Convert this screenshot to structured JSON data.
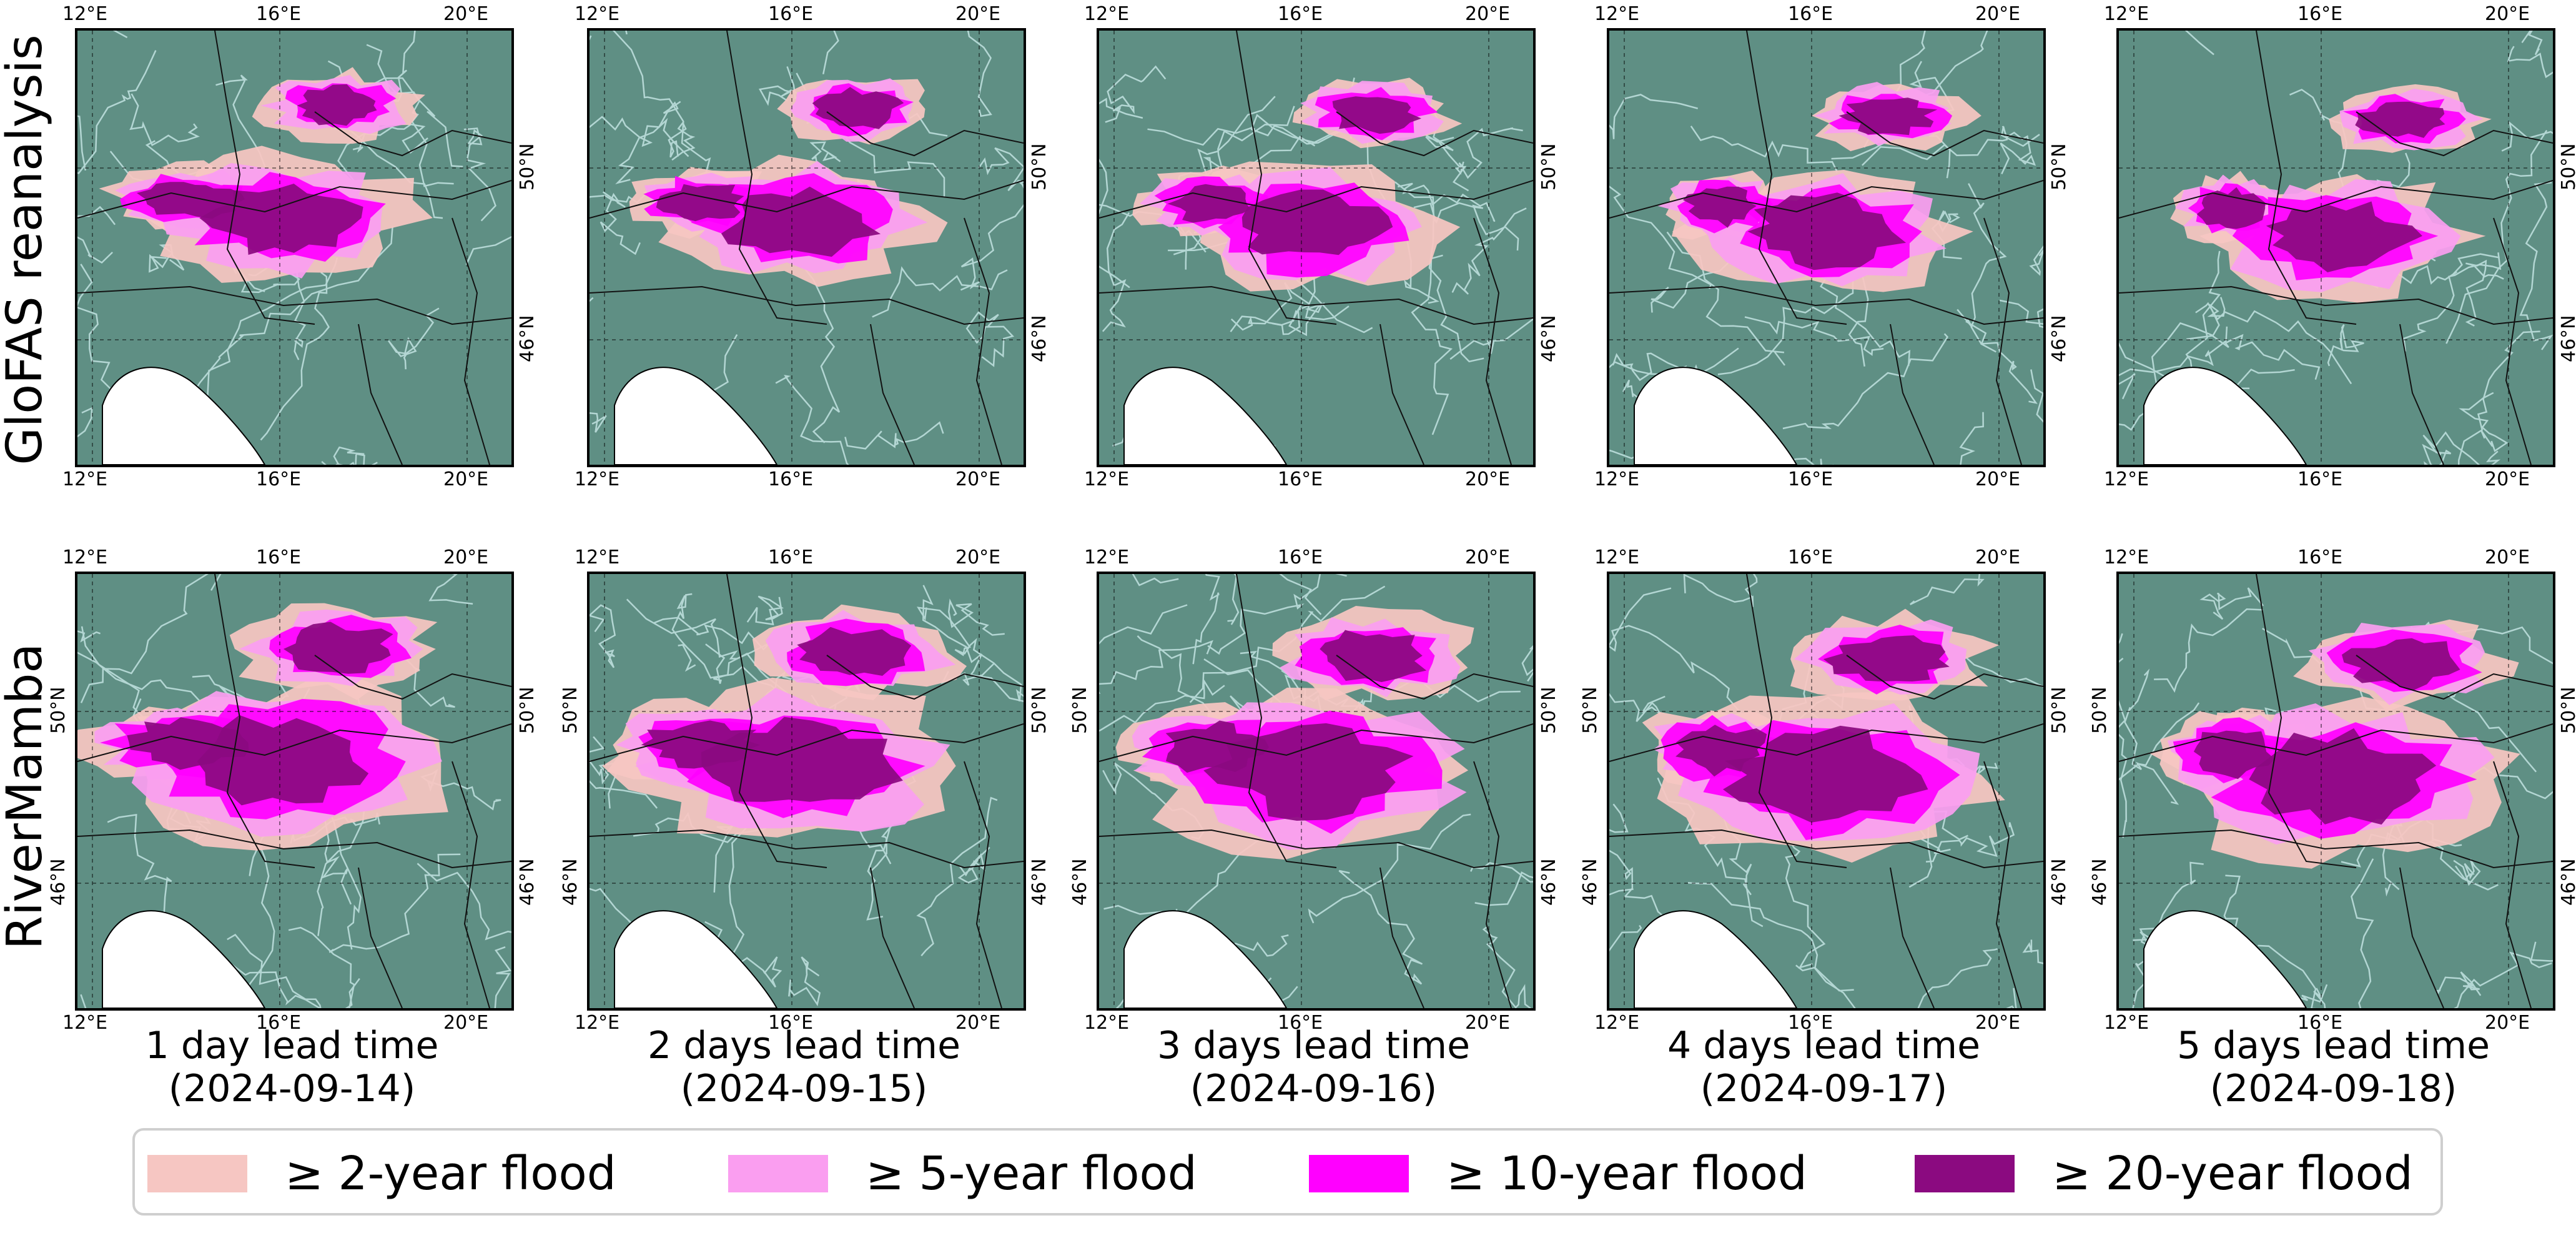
{
  "row_labels": [
    "GloFAS reanalysis",
    "RiverMamba"
  ],
  "axis_ticks": {
    "lon": [
      "12°E",
      "16°E",
      "20°E"
    ],
    "lat": [
      "50°N",
      "46°N"
    ]
  },
  "columns": [
    {
      "lead": "1 day lead time",
      "date": "(2024-09-14)"
    },
    {
      "lead": "2 days lead time",
      "date": "(2024-09-15)"
    },
    {
      "lead": "3 days lead time",
      "date": "(2024-09-16)"
    },
    {
      "lead": "4 days lead time",
      "date": "(2024-09-17)"
    },
    {
      "lead": "5 days lead time",
      "date": "(2024-09-18)"
    }
  ],
  "legend": [
    {
      "label": "≥  2-year flood",
      "color": "#f6c6c2"
    },
    {
      "label": "≥  5-year flood",
      "color": "#fa9ef0"
    },
    {
      "label": "≥  10-year flood",
      "color": "#ff00ff"
    },
    {
      "label": "≥  20-year flood",
      "color": "#8b0a80"
    }
  ],
  "colors": {
    "terrain": "#5f8f84",
    "rivers": "#cfeeee",
    "sea": "#ffffff",
    "borders": "#111111"
  }
}
